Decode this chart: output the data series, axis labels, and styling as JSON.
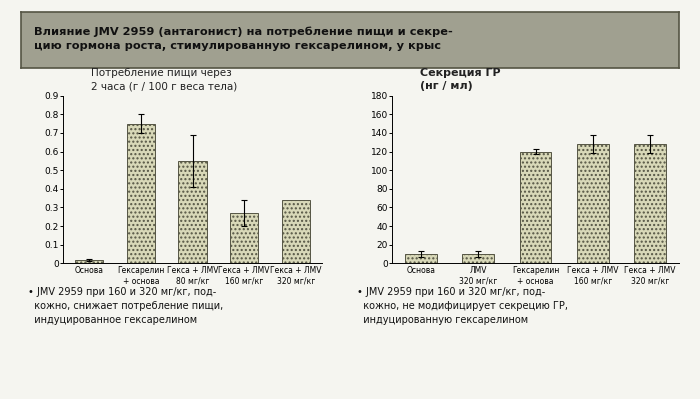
{
  "title_line1": "Влияние JMV 2959 (антагонист) на потребление пищи и секре-",
  "title_line2": "цию гормона роста, стимулированную гексарелином, у крыс",
  "left_chart_title_line1": "Потребление пищи через",
  "left_chart_title_line2": "2 часа (г / 100 г веса тела)",
  "right_chart_title_line1": "Секреция ГР",
  "right_chart_title_line2": "(нг / мл)",
  "left_bars": {
    "values": [
      0.02,
      0.75,
      0.55,
      0.27,
      0.34
    ],
    "errors": [
      0.005,
      0.05,
      0.14,
      0.07,
      0.0
    ],
    "labels": [
      "Основа",
      "Гексарелин\n+ основа",
      "Гекса + ЛМV\n80 мг/кг",
      "Гекса + ЛМV\n160 мг/кг",
      "Гекса + ЛМV\n320 мг/кг"
    ],
    "ylim": [
      0,
      0.9
    ],
    "yticks": [
      0,
      0.1,
      0.2,
      0.3,
      0.4,
      0.5,
      0.6,
      0.7,
      0.8,
      0.9
    ]
  },
  "right_bars": {
    "values": [
      10,
      10,
      120,
      128,
      128
    ],
    "errors": [
      3,
      3,
      3,
      10,
      10
    ],
    "labels": [
      "Основа",
      "ЛМV\n320 мг/кг",
      "Гексарелин\n+ основа",
      "Гекса + ЛМV\n160 мг/кг",
      "Гекса + ЛМV\n320 мг/кг"
    ],
    "ylim": [
      0,
      180
    ],
    "yticks": [
      0,
      20,
      40,
      60,
      80,
      100,
      120,
      140,
      160,
      180
    ]
  },
  "bar_facecolor": "#d8d8b8",
  "bar_hatch": "....",
  "bar_edgecolor": "#555544",
  "bar_linewidth": 0.7,
  "bg_color": "#f5f5f0",
  "title_bg": "#a0a090",
  "title_border": "#555544",
  "footnote_left": "• JMV 2959 при 160 и 320 мг/кг, под-\n  кожно, снижает потребление пищи,\n  индуцированное гексарелином",
  "footnote_right": "• JMV 2959 при 160 и 320 мг/кг, под-\n  кожно, не модифицирует секрецию ГР,\n  индуцированную гексарелином"
}
